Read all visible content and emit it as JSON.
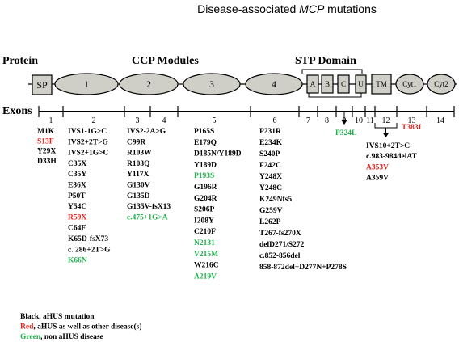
{
  "title": "Disease-associated MCP mutations",
  "title_parts": [
    "Disease-associated ",
    "MCP",
    " mutations"
  ],
  "labels": {
    "protein": "Protein",
    "ccp": "CCP Modules",
    "stp": "STP Domain",
    "exons": "Exons"
  },
  "colors": {
    "black": "#000000",
    "red": "#e8201c",
    "green": "#22b14c",
    "module_fill": "#cfcfc7"
  },
  "domains": [
    {
      "id": "sp",
      "label": "SP",
      "shape": "rect"
    },
    {
      "id": "ccp1",
      "label": "1",
      "shape": "ellipse"
    },
    {
      "id": "ccp2",
      "label": "2",
      "shape": "ellipse"
    },
    {
      "id": "ccp3",
      "label": "3",
      "shape": "ellipse"
    },
    {
      "id": "ccp4",
      "label": "4",
      "shape": "ellipse"
    },
    {
      "id": "stpA",
      "label": "A",
      "shape": "rect"
    },
    {
      "id": "stpB",
      "label": "B",
      "shape": "rect"
    },
    {
      "id": "stpC",
      "label": "C",
      "shape": "rect"
    },
    {
      "id": "u",
      "label": "U",
      "shape": "rect"
    },
    {
      "id": "tm",
      "label": "TM",
      "shape": "rect"
    },
    {
      "id": "cyt1",
      "label": "Cyt1",
      "shape": "ellipse"
    },
    {
      "id": "cyt2",
      "label": "Cyt2",
      "shape": "ellipse"
    }
  ],
  "exons": [
    "1",
    "2",
    "3",
    "4",
    "5",
    "6",
    "7",
    "8",
    "9",
    "10",
    "11",
    "12",
    "13",
    "14"
  ],
  "mutation_groups": [
    {
      "id": "exon1",
      "items": [
        {
          "text": "M1K",
          "color": "black"
        },
        {
          "text": "S13F",
          "color": "red"
        },
        {
          "text": "Y29X",
          "color": "black"
        },
        {
          "text": "D33H",
          "color": "black"
        }
      ]
    },
    {
      "id": "exon2",
      "items": [
        {
          "text": "IVS1-1G>C",
          "color": "black"
        },
        {
          "text": "IVS2+2T>G",
          "color": "black"
        },
        {
          "text": "IVS2+1G>C",
          "color": "black"
        },
        {
          "text": "C35X",
          "color": "black"
        },
        {
          "text": "C35Y",
          "color": "black"
        },
        {
          "text": "E36X",
          "color": "black"
        },
        {
          "text": "P50T",
          "color": "black"
        },
        {
          "text": "Y54C",
          "color": "black"
        },
        {
          "text": "R59X",
          "color": "red"
        },
        {
          "text": "C64F",
          "color": "black"
        },
        {
          "text": "K65D-fsX73",
          "color": "black"
        },
        {
          "text": "c. 286+2T>G",
          "color": "black"
        },
        {
          "text": "K66N",
          "color": "green"
        }
      ]
    },
    {
      "id": "exon3_4",
      "items": [
        {
          "text": "IVS2-2A>G",
          "color": "black"
        },
        {
          "text": "C99R",
          "color": "black"
        },
        {
          "text": "R103W",
          "color": "black"
        },
        {
          "text": "R103Q",
          "color": "black"
        },
        {
          "text": "Y117X",
          "color": "black"
        },
        {
          "text": "G130V",
          "color": "black"
        },
        {
          "text": "G135D",
          "color": "black"
        },
        {
          "text": "G135V-fsX13",
          "color": "black"
        },
        {
          "text": "c.475+1G>A",
          "color": "green"
        }
      ]
    },
    {
      "id": "exon5",
      "items": [
        {
          "text": "P165S",
          "color": "black"
        },
        {
          "text": "E179Q",
          "color": "black"
        },
        {
          "text": "D185N/Y189D",
          "color": "black"
        },
        {
          "text": "Y189D",
          "color": "black"
        },
        {
          "text": "P193S",
          "color": "green"
        },
        {
          "text": "G196R",
          "color": "black"
        },
        {
          "text": "G204R",
          "color": "black"
        },
        {
          "text": "S206P",
          "color": "black"
        },
        {
          "text": "I208Y",
          "color": "black"
        },
        {
          "text": "C210F",
          "color": "black"
        },
        {
          "text": "N2131",
          "color": "green"
        },
        {
          "text": "V215M",
          "color": "green"
        },
        {
          "text": "W216C",
          "color": "black"
        },
        {
          "text": "A219V",
          "color": "green"
        }
      ]
    },
    {
      "id": "exon6",
      "items": [
        {
          "text": "P231R",
          "color": "black"
        },
        {
          "text": "E234K",
          "color": "black"
        },
        {
          "text": "S240P",
          "color": "black"
        },
        {
          "text": "F242C",
          "color": "black"
        },
        {
          "text": "Y248X",
          "color": "black"
        },
        {
          "text": "Y248C",
          "color": "black"
        },
        {
          "text": "K249Nfs5",
          "color": "black"
        },
        {
          "text": "G259V",
          "color": "black"
        },
        {
          "text": "L262P",
          "color": "black"
        },
        {
          "text": "T267-fs270X",
          "color": "black"
        },
        {
          "text": "delD271/S272",
          "color": "black"
        },
        {
          "text": "c.852-856del",
          "color": "black"
        },
        {
          "text": "858-872del+D277N+P278S",
          "color": "black"
        }
      ]
    },
    {
      "id": "exon9",
      "items": [
        {
          "text": "P324L",
          "color": "green"
        }
      ]
    },
    {
      "id": "exon11_12",
      "items": [
        {
          "text": "IVS10+2T>C",
          "color": "black"
        },
        {
          "text": "c.983-984delAT",
          "color": "black"
        },
        {
          "text": "A353V",
          "color": "red"
        },
        {
          "text": "A359V",
          "color": "black"
        }
      ]
    },
    {
      "id": "exon13",
      "items": [
        {
          "text": "T383I",
          "color": "red"
        }
      ]
    }
  ],
  "legend": [
    {
      "highlight": "Black",
      "rest": ", aHUS mutation",
      "color": "black"
    },
    {
      "highlight": "Red",
      "rest": ", aHUS as well as other disease(s)",
      "color": "red"
    },
    {
      "highlight": "Green",
      "rest": ", non aHUS disease",
      "color": "green"
    }
  ]
}
